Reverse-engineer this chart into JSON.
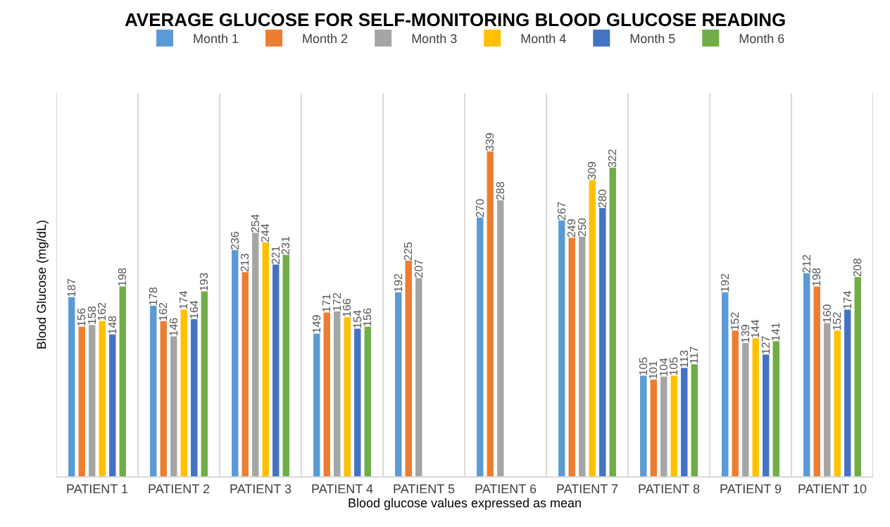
{
  "chart_data": {
    "type": "bar",
    "title": "AVERAGE GLUCOSE FOR SELF-MONITORING BLOOD GLUCOSE READING",
    "xlabel": "Blood glucose values expressed as mean",
    "ylabel": "Blood Glucose (mg/dL)",
    "categories": [
      "PATIENT 1",
      "PATIENT 2",
      "PATIENT 3",
      "PATIENT 4",
      "PATIENT 5",
      "PATIENT 6",
      "PATIENT 7",
      "PATIENT 8",
      "PATIENT 9",
      "PATIENT 10"
    ],
    "series": [
      {
        "name": "Month 1",
        "color": "#5b9bd5",
        "values": [
          187,
          178,
          236,
          149,
          192,
          270,
          267,
          105,
          192,
          212
        ]
      },
      {
        "name": "Month 2",
        "color": "#ed7d31",
        "values": [
          156,
          162,
          213,
          171,
          225,
          339,
          249,
          101,
          152,
          198
        ]
      },
      {
        "name": "Month 3",
        "color": "#a5a5a5",
        "values": [
          158,
          146,
          254,
          172,
          207,
          288,
          250,
          104,
          139,
          160
        ]
      },
      {
        "name": "Month 4",
        "color": "#ffc000",
        "values": [
          162,
          174,
          244,
          166,
          null,
          null,
          309,
          105,
          144,
          152
        ]
      },
      {
        "name": "Month 5",
        "color": "#4472c4",
        "values": [
          148,
          164,
          221,
          154,
          null,
          null,
          280,
          113,
          127,
          174
        ]
      },
      {
        "name": "Month 6",
        "color": "#70ad47",
        "values": [
          198,
          193,
          231,
          156,
          null,
          null,
          322,
          117,
          141,
          208
        ]
      }
    ],
    "data_labels": true,
    "grid": "x",
    "legend": "top",
    "tick_labels": "x"
  }
}
